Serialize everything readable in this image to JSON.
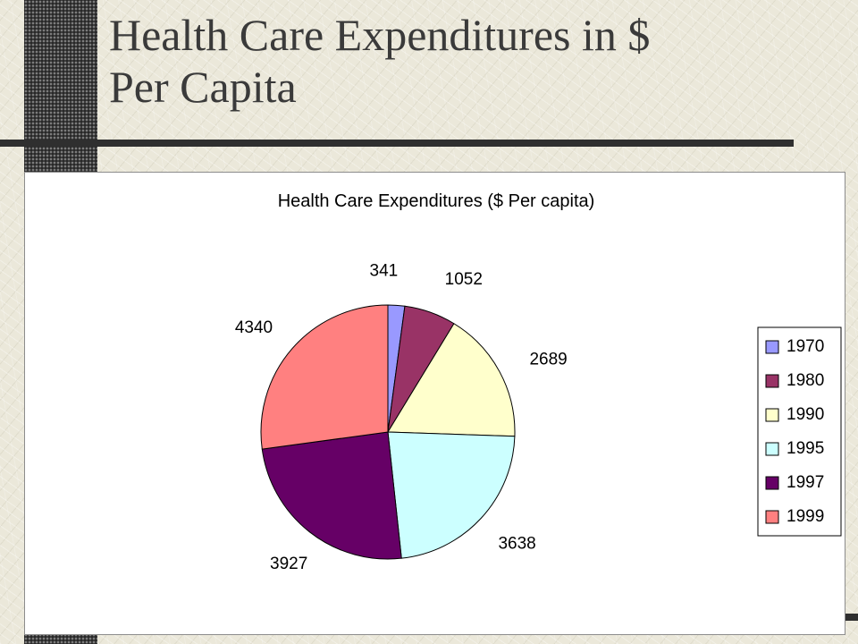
{
  "slide": {
    "title_line1": "Health Care Expenditures in $",
    "title_line2": "Per Capita"
  },
  "chart_data": {
    "type": "pie",
    "title": "Health Care Expenditures ($ Per capita)",
    "categories": [
      "1970",
      "1980",
      "1990",
      "1995",
      "1997",
      "1999"
    ],
    "values": [
      341,
      1052,
      2689,
      3638,
      3927,
      4340
    ],
    "colors": [
      "#9999ff",
      "#993366",
      "#ffffcc",
      "#ccffff",
      "#660066",
      "#ff8080"
    ],
    "legend_placement": "right",
    "data_labels": true
  }
}
